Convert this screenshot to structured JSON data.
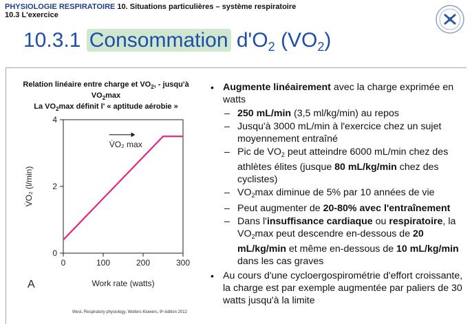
{
  "header": {
    "course": "PHYSIOLOGIE RESPIRATOIRE",
    "section": "10. Situations particulières – système respiratoire",
    "subsection": "10.3 L'exercice"
  },
  "title": {
    "num": "10.3.1",
    "highlight": "Consommation",
    "rest": "d'O",
    "sub1": "2",
    "paren_open": " (VO",
    "sub2": "2",
    "paren_close": ")"
  },
  "caption": {
    "line1": "Relation linéaire entre charge et VO",
    "sub1": "2",
    "line1b": ", - jusqu'à",
    "line2": "VO",
    "sub2": "2",
    "line2b": "max",
    "line3": "La VO",
    "sub3": "2",
    "line3b": "max définit l' « aptitude aérobie »"
  },
  "chart_data": {
    "type": "line",
    "xlabel": "Work rate (watts)",
    "ylabel": "V̇O₂ (l/min)",
    "xlim": [
      0,
      300
    ],
    "ylim": [
      0,
      4
    ],
    "xticks": [
      "0",
      "100",
      "200",
      "300"
    ],
    "yticks": [
      "0",
      "2",
      "4"
    ],
    "series": [
      {
        "x": [
          0,
          250,
          300
        ],
        "y": [
          0.4,
          3.5,
          3.5
        ]
      }
    ],
    "annotation": "V̇O₂ max",
    "panel_label": "A",
    "line_color": "#e5257f"
  },
  "credit": "West, Respiratory physiology, Wolters Kluwers, 9ᵉ édition 2012",
  "bullets": {
    "b1_bold": "Augmente linéairement",
    "b1_rest": " avec la charge exprimée en watts",
    "s1_bold": "250 mL/min",
    "s1_rest": " (3,5 ml/kg/min) au repos",
    "s2": "Jusqu'à 3000 mL/min à l'exercice chez un sujet moyennement entraîné",
    "s3_a": "Pic de VO",
    "s3_sub": "2",
    "s3_b": " peut atteindre 6000 mL/min chez des athlètes élites (jusque ",
    "s3_bold": "80 mL/kg/min",
    "s3_c": " chez des cyclistes)",
    "s4_a": "VO",
    "s4_sub": "2",
    "s4_b": "max diminue de 5% par 10 années de vie",
    "s5_a": "Peut augmenter de ",
    "s5_bold": "20-80% avec l'entraînement",
    "s6_a": "Dans l'",
    "s6_bold1": "insuffisance cardiaque",
    "s6_b": " ou ",
    "s6_bold2": "respiratoire",
    "s6_c": ", la VO",
    "s6_sub": "2",
    "s6_d": "max peut descendre en-dessous de ",
    "s6_bold3": "20 mL/kg/min",
    "s6_e": " et même en-dessous de ",
    "s6_bold4": "10 mL/kg/min",
    "s6_f": " dans les cas graves",
    "b2": "Au cours d'une cycloergospirométrie d'effort croissante, la charge est par exemple augmentée par paliers de 30 watts jusqu'à la limite"
  }
}
